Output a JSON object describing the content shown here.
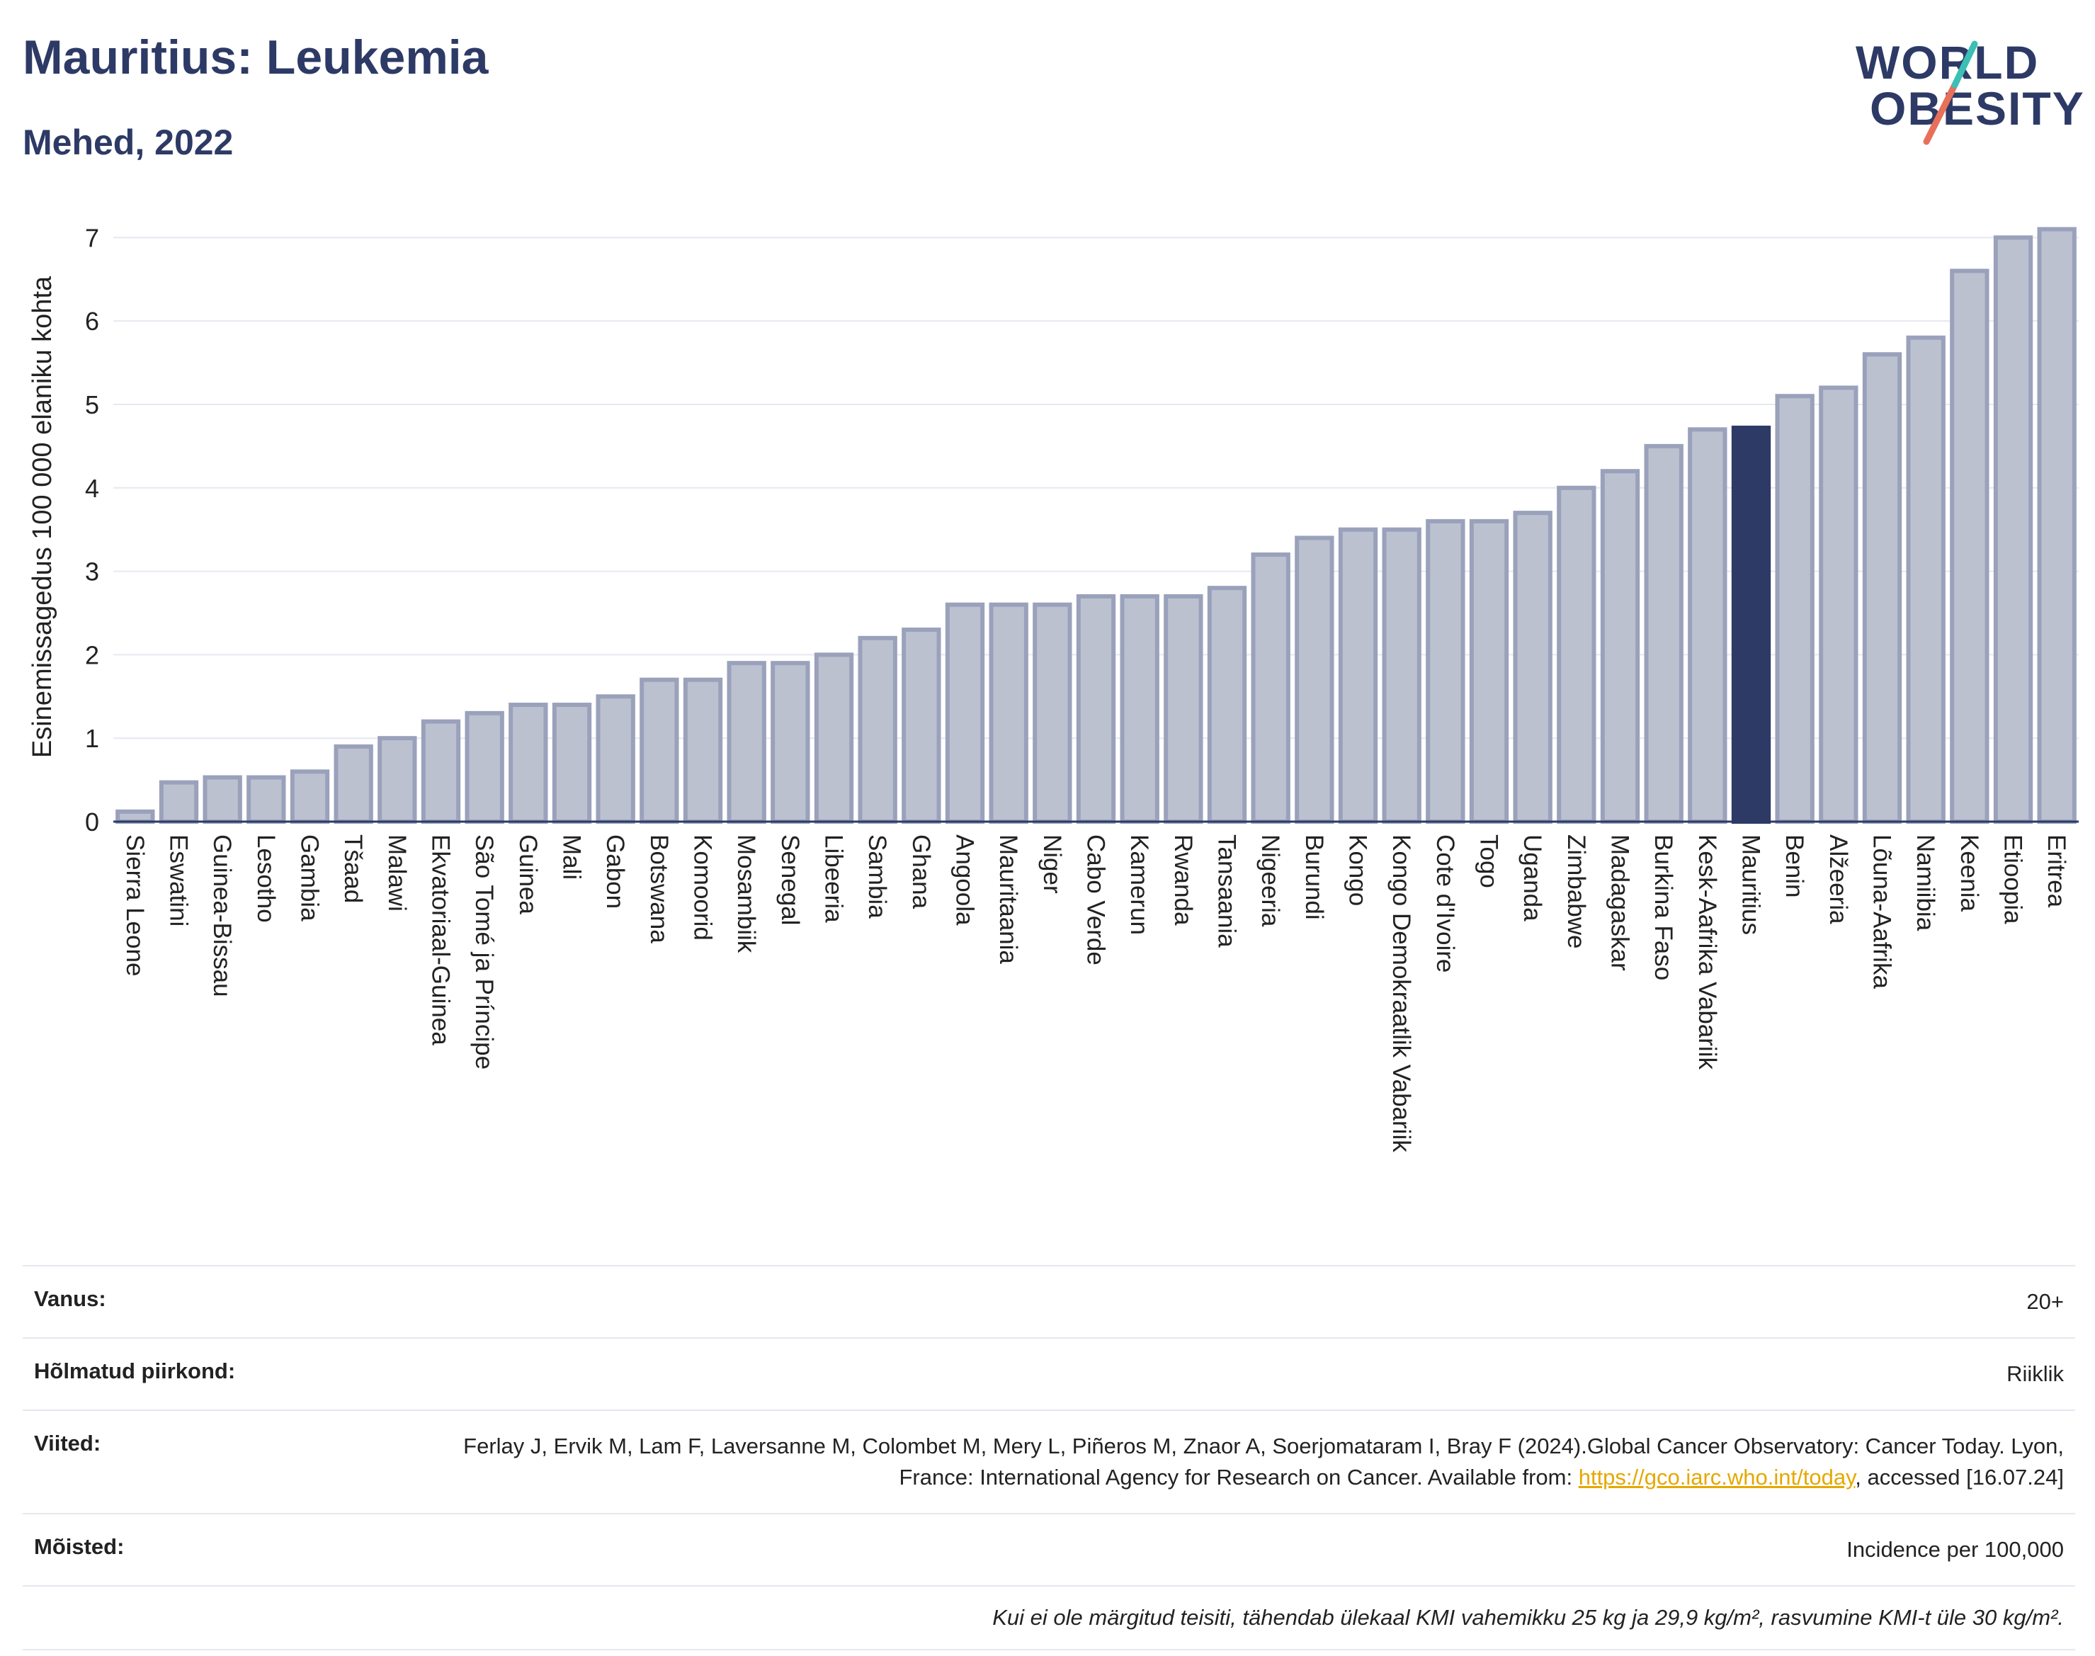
{
  "header": {
    "title": "Mauritius: Leukemia",
    "subtitle": "Mehed, 2022"
  },
  "logo": {
    "line1": "WORLD",
    "line2": "OBESITY"
  },
  "chart_data": {
    "type": "bar",
    "ylabel": "Esinemissagedus 100 000 elaniku kohta",
    "ylim": [
      0,
      7.3
    ],
    "yticks": [
      0,
      1,
      2,
      3,
      4,
      5,
      6,
      7
    ],
    "grid": true,
    "highlight": "Mauritius",
    "colors": {
      "bar": "#bcc1d0",
      "bar_border": "#9aa1bb",
      "highlight": "#2d3a66"
    },
    "categories": [
      "Sierra Leone",
      "Eswatini",
      "Guinea-Bissau",
      "Lesotho",
      "Gambia",
      "Tšaad",
      "Malawi",
      "Ekvatoriaal-Guinea",
      "São Tomé ja Príncipe",
      "Guinea",
      "Mali",
      "Gabon",
      "Botswana",
      "Komoorid",
      "Mosambiik",
      "Senegal",
      "Libeeria",
      "Sambia",
      "Ghana",
      "Angoola",
      "Mauritaania",
      "Niger",
      "Cabo Verde",
      "Kamerun",
      "Rwanda",
      "Tansaania",
      "Nigeeria",
      "Burundi",
      "Kongo",
      "Kongo Demokraatlik Vabariik",
      "Cote d'Ivoire",
      "Togo",
      "Uganda",
      "Zimbabwe",
      "Madagaskar",
      "Burkina Faso",
      "Kesk-Aafrika Vabariik",
      "Mauritius",
      "Benin",
      "Alžeeria",
      "Lõuna-Aafrika",
      "Namiibia",
      "Keenia",
      "Etioopia",
      "Eritrea"
    ],
    "values": [
      0.12,
      0.47,
      0.53,
      0.53,
      0.6,
      0.9,
      1.0,
      1.2,
      1.3,
      1.4,
      1.4,
      1.5,
      1.7,
      1.7,
      1.9,
      1.9,
      2.0,
      2.2,
      2.3,
      2.6,
      2.6,
      2.6,
      2.7,
      2.7,
      2.7,
      2.8,
      3.2,
      3.4,
      3.5,
      3.5,
      3.6,
      3.6,
      3.7,
      4.0,
      4.2,
      4.5,
      4.7,
      4.72,
      5.1,
      5.2,
      5.6,
      5.8,
      6.6,
      7.0,
      7.1
    ]
  },
  "info": {
    "age_label": "Vanus:",
    "age_value": "20+",
    "region_label": "Hõlmatud piirkond:",
    "region_value": "Riiklik",
    "refs_label": "Viited:",
    "refs_text": "Ferlay J, Ervik M, Lam F, Laversanne M, Colombet M, Mery L, Piñeros M, Znaor A, Soerjomataram I, Bray F (2024).Global Cancer Observatory: Cancer Today. Lyon, France: International Agency for Research on Cancer. Available from: ",
    "refs_link": "https://gco.iarc.who.int/today",
    "refs_tail": ", accessed [16.07.24]",
    "defs_label": "Mõisted:",
    "defs_value": "Incidence per 100,000",
    "note": "Kui ei ole märgitud teisiti, tähendab ülekaal KMI vahemikku 25 kg ja 29,9 kg/m², rasvumine KMI-t üle 30 kg/m²."
  }
}
